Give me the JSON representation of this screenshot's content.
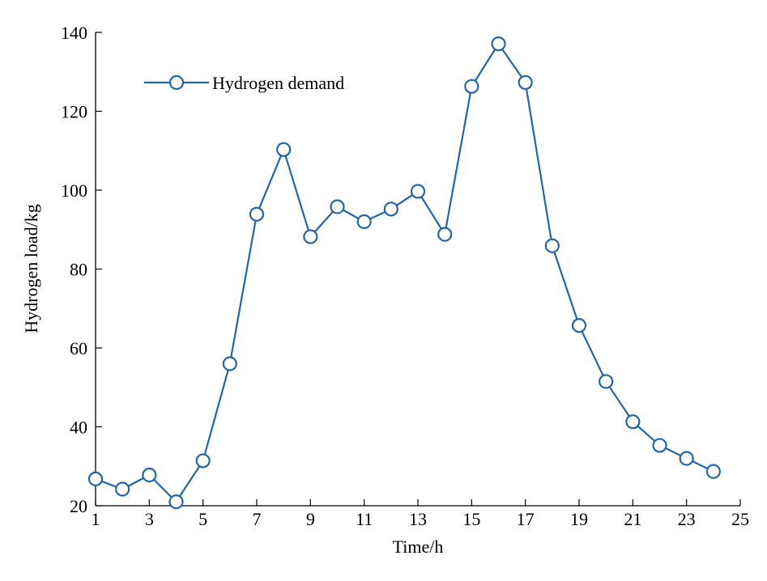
{
  "chart_data": {
    "type": "line",
    "title": "",
    "xlabel": "Time/h",
    "ylabel": "Hydrogen load/kg",
    "xlim": [
      1,
      25
    ],
    "ylim": [
      20,
      140
    ],
    "xticks": [
      1,
      3,
      5,
      7,
      9,
      11,
      13,
      15,
      17,
      19,
      21,
      23,
      25
    ],
    "yticks": [
      20,
      40,
      60,
      80,
      100,
      120,
      140
    ],
    "grid": false,
    "legend_position": "top-left",
    "series": [
      {
        "name": "Hydrogen demand",
        "color": "#2166a6",
        "marker": "open-circle",
        "x": [
          1,
          2,
          3,
          4,
          5,
          6,
          7,
          8,
          9,
          10,
          11,
          12,
          13,
          14,
          15,
          16,
          17,
          18,
          19,
          20,
          21,
          22,
          23,
          24
        ],
        "values": [
          26.8,
          24.2,
          27.8,
          21.0,
          31.4,
          56.0,
          93.9,
          110.3,
          88.2,
          95.8,
          92.0,
          95.2,
          99.7,
          88.8,
          126.3,
          137.1,
          127.3,
          85.9,
          65.7,
          51.5,
          41.3,
          35.3,
          32.0,
          28.7
        ]
      }
    ]
  }
}
